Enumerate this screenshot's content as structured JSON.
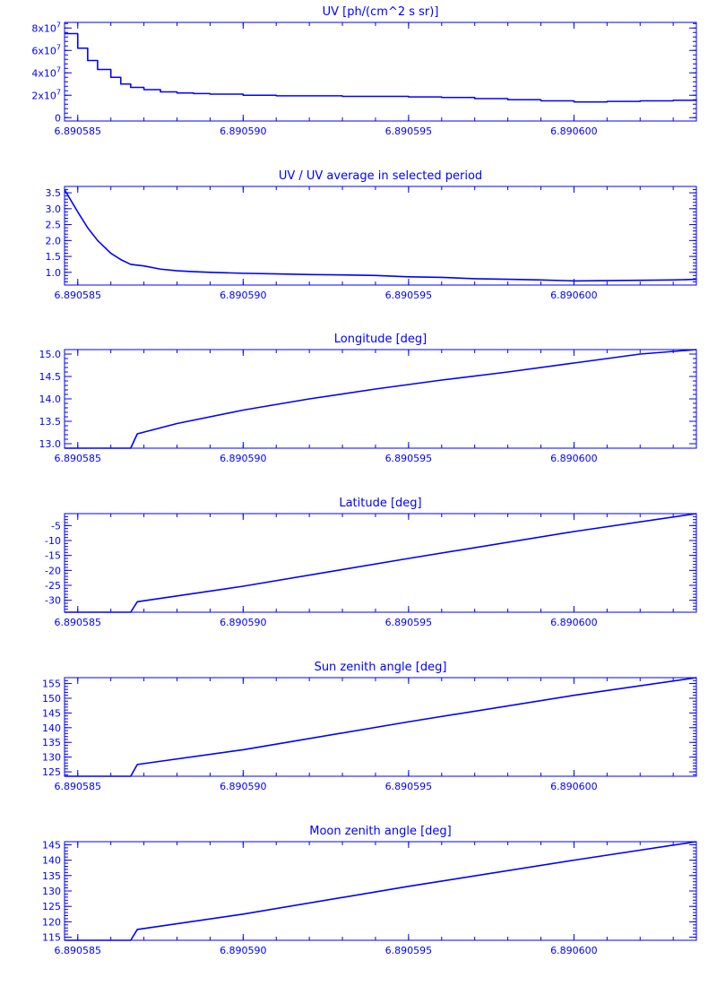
{
  "colors": {
    "line": "#0000ff",
    "background": "#ffffff"
  },
  "chart_data": [
    {
      "type": "line",
      "title": "UV [ph/(cm^2 s sr)]",
      "xlim": [
        6.8905846,
        6.8906037
      ],
      "ylim": [
        -3000000.0,
        85000000.0
      ],
      "x_ticks": [
        6.890585,
        6.89059,
        6.890595,
        6.8906
      ],
      "x_tick_labels": [
        "6.890585",
        "6.890590",
        "6.890595",
        "6.890600"
      ],
      "y_ticks": [
        0,
        20000000.0,
        40000000.0,
        60000000.0,
        80000000.0
      ],
      "y_tick_labels": [
        "0",
        "2x10^7",
        "4x10^7",
        "6x10^7",
        "8x10^7"
      ],
      "step": true,
      "x": [
        6.8905846,
        6.890585,
        6.8905853,
        6.8905856,
        6.890586,
        6.8905863,
        6.8905866,
        6.890587,
        6.8905875,
        6.890588,
        6.8905885,
        6.890589,
        6.89059,
        6.890591,
        6.890592,
        6.890593,
        6.890594,
        6.890595,
        6.890596,
        6.890597,
        6.890598,
        6.890599,
        6.8906,
        6.890601,
        6.890602,
        6.890603,
        6.8906037
      ],
      "y": [
        75000000.0,
        62000000.0,
        51000000.0,
        43000000.0,
        36000000.0,
        30000000.0,
        27000000.0,
        25000000.0,
        23000000.0,
        22000000.0,
        21500000.0,
        21000000.0,
        20000000.0,
        19500000.0,
        19500000.0,
        19000000.0,
        19000000.0,
        18500000.0,
        18000000.0,
        17000000.0,
        16000000.0,
        15000000.0,
        14000000.0,
        14500000.0,
        15000000.0,
        15500000.0,
        16000000.0
      ]
    },
    {
      "type": "line",
      "title": "UV / UV average in selected period",
      "xlim": [
        6.8905846,
        6.8906037
      ],
      "ylim": [
        0.6,
        3.7
      ],
      "x_ticks": [
        6.890585,
        6.89059,
        6.890595,
        6.8906
      ],
      "x_tick_labels": [
        "6.890585",
        "6.890590",
        "6.890595",
        "6.890600"
      ],
      "y_ticks": [
        1.0,
        1.5,
        2.0,
        2.5,
        3.0,
        3.5
      ],
      "y_tick_labels": [
        "1.0",
        "1.5",
        "2.0",
        "2.5",
        "3.0",
        "3.5"
      ],
      "x": [
        6.8905846,
        6.890585,
        6.8905853,
        6.8905856,
        6.890586,
        6.8905863,
        6.8905866,
        6.890587,
        6.8905875,
        6.890588,
        6.8905885,
        6.890589,
        6.89059,
        6.890591,
        6.890592,
        6.890593,
        6.890594,
        6.890595,
        6.890596,
        6.890597,
        6.890598,
        6.890599,
        6.8906,
        6.890601,
        6.890602,
        6.890603,
        6.8906037
      ],
      "y": [
        3.6,
        2.9,
        2.4,
        2.0,
        1.6,
        1.4,
        1.25,
        1.2,
        1.1,
        1.05,
        1.02,
        1.0,
        0.97,
        0.95,
        0.93,
        0.92,
        0.9,
        0.86,
        0.84,
        0.8,
        0.78,
        0.76,
        0.73,
        0.74,
        0.75,
        0.76,
        0.78
      ]
    },
    {
      "type": "line",
      "title": "Longitude [deg]",
      "xlim": [
        6.8905846,
        6.8906037
      ],
      "ylim": [
        12.9,
        15.1
      ],
      "x_ticks": [
        6.890585,
        6.89059,
        6.890595,
        6.8906
      ],
      "x_tick_labels": [
        "6.890585",
        "6.890590",
        "6.890595",
        "6.890600"
      ],
      "y_ticks": [
        13.0,
        13.5,
        14.0,
        14.5,
        15.0
      ],
      "y_tick_labels": [
        "13.0",
        "13.5",
        "14.0",
        "14.5",
        "15.0"
      ],
      "x": [
        6.8905846,
        6.8905866,
        6.8905868,
        6.890588,
        6.89059,
        6.890592,
        6.890594,
        6.890596,
        6.890598,
        6.8906,
        6.890602,
        6.8906037
      ],
      "y": [
        12.9,
        12.9,
        13.22,
        13.45,
        13.75,
        14.0,
        14.22,
        14.42,
        14.6,
        14.8,
        15.0,
        15.1
      ]
    },
    {
      "type": "line",
      "title": "Latitude [deg]",
      "xlim": [
        6.8905846,
        6.8906037
      ],
      "ylim": [
        -34,
        -1
      ],
      "x_ticks": [
        6.890585,
        6.89059,
        6.890595,
        6.8906
      ],
      "x_tick_labels": [
        "6.890585",
        "6.890590",
        "6.890595",
        "6.890600"
      ],
      "y_ticks": [
        -30,
        -25,
        -20,
        -15,
        -10,
        -5
      ],
      "y_tick_labels": [
        "-30",
        "-25",
        "-20",
        "-15",
        "-10",
        "-5"
      ],
      "x": [
        6.8905846,
        6.8905866,
        6.8905868,
        6.89059,
        6.890595,
        6.8906,
        6.8906037
      ],
      "y": [
        -34,
        -34,
        -30.5,
        -25.3,
        -16.0,
        -7.0,
        -1.0
      ]
    },
    {
      "type": "line",
      "title": "Sun zenith angle [deg]",
      "xlim": [
        6.8905846,
        6.8906037
      ],
      "ylim": [
        123.5,
        157
      ],
      "x_ticks": [
        6.890585,
        6.89059,
        6.890595,
        6.8906
      ],
      "x_tick_labels": [
        "6.890585",
        "6.890590",
        "6.890595",
        "6.890600"
      ],
      "y_ticks": [
        125,
        130,
        135,
        140,
        145,
        150,
        155
      ],
      "y_tick_labels": [
        "125",
        "130",
        "135",
        "140",
        "145",
        "150",
        "155"
      ],
      "x": [
        6.8905846,
        6.8905866,
        6.8905868,
        6.89059,
        6.890595,
        6.8906,
        6.8906037
      ],
      "y": [
        123.5,
        123.5,
        127.5,
        132.5,
        142.0,
        151.0,
        157.0
      ]
    },
    {
      "type": "line",
      "title": "Moon zenith angle [deg]",
      "xlim": [
        6.8905846,
        6.8906037
      ],
      "ylim": [
        114,
        146
      ],
      "x_ticks": [
        6.890585,
        6.89059,
        6.890595,
        6.8906
      ],
      "x_tick_labels": [
        "6.890585",
        "6.890590",
        "6.890595",
        "6.890600"
      ],
      "y_ticks": [
        115,
        120,
        125,
        130,
        135,
        140,
        145
      ],
      "y_tick_labels": [
        "115",
        "120",
        "125",
        "130",
        "135",
        "140",
        "145"
      ],
      "x": [
        6.8905846,
        6.8905866,
        6.8905868,
        6.89059,
        6.890595,
        6.8906,
        6.8906037
      ],
      "y": [
        114,
        114,
        117.5,
        122.5,
        131.5,
        140.0,
        146.0
      ]
    }
  ]
}
